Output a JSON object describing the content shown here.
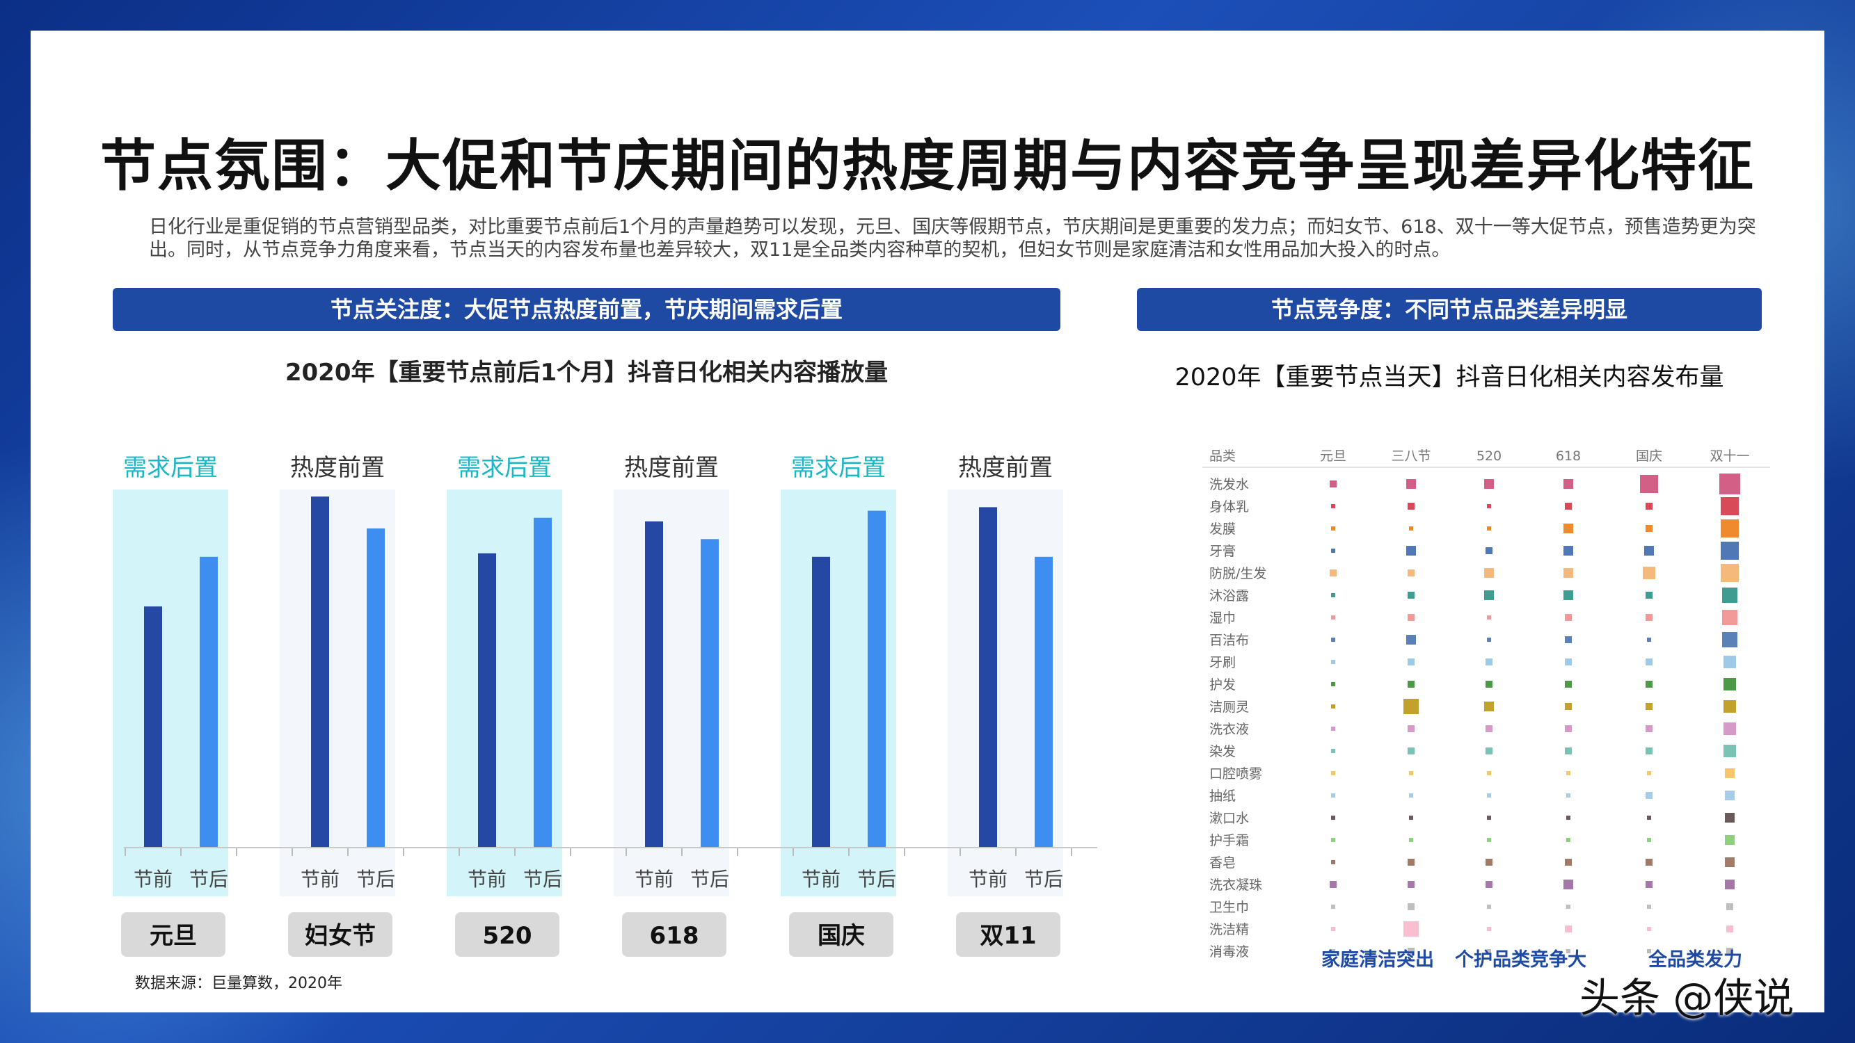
{
  "title": "节点氛围：大促和节庆期间的热度周期与内容竞争呈现差异化特征",
  "intro": "日化行业是重促销的节点营销型品类，对比重要节点前后1个月的声量趋势可以发现，元旦、国庆等假期节点，节庆期间是更重要的发力点；而妇女节、618、双十一等大促节点，预售造势更为突出。同时，从节点竞争力角度来看，节点当天的内容发布量也差异较大，双11是全品类内容种草的契机，但妇女节则是家庭清洁和女性用品加大投入的时点。",
  "left_panel": {
    "header": "节点关注度：大促节点热度前置，节庆期间需求后置"
  },
  "right_panel": {
    "header": "节点竞争度：不同节点品类差异明显",
    "notes": [
      "家庭清洁突出",
      "个护品类竞争大",
      "全品类发力"
    ]
  },
  "source": "数据来源：巨量算数，2020年",
  "watermark": "头条 @侠说",
  "colors": {
    "before": "#2548a4",
    "after": "#3d8ef0",
    "highlight_bg": "#d3f4f8",
    "plain_bg": "#f3f6fb",
    "highlight_label": "#1ab7c5",
    "plain_label": "#333333"
  },
  "chart_data": [
    {
      "type": "bar",
      "title": "2020年【重要节点前后1个月】抖音日化相关内容播放量",
      "categories": [
        "元旦",
        "妇女节",
        "520",
        "618",
        "国庆",
        "双11"
      ],
      "annotations": [
        "需求后置",
        "热度前置",
        "需求后置",
        "热度前置",
        "需求后置",
        "热度前置"
      ],
      "highlight": [
        true,
        false,
        true,
        false,
        true,
        false
      ],
      "sublabels": [
        "节前",
        "节后"
      ],
      "series": [
        {
          "name": "节前",
          "values": [
            68,
            99,
            83,
            92,
            82,
            96
          ]
        },
        {
          "name": "节后",
          "values": [
            82,
            90,
            93,
            87,
            95,
            82
          ]
        }
      ],
      "ylim": [
        0,
        100
      ],
      "grid": false
    },
    {
      "type": "heatmap",
      "title": "2020年【重要节点当天】抖音日化相关内容发布量",
      "corner_label": "品类",
      "columns": [
        "元旦",
        "三八节",
        "520",
        "618",
        "国庆",
        "双十一"
      ],
      "rows": [
        {
          "name": "洗发水",
          "values": [
            2,
            3,
            3,
            3,
            6,
            7
          ],
          "color": "#d45f86"
        },
        {
          "name": "身体乳",
          "values": [
            1,
            2,
            1,
            2,
            2,
            6
          ],
          "color": "#d94a58"
        },
        {
          "name": "发膜",
          "values": [
            1,
            1,
            1,
            3,
            2,
            6
          ],
          "color": "#ef8a2e"
        },
        {
          "name": "牙膏",
          "values": [
            1,
            3,
            2,
            3,
            3,
            6
          ],
          "color": "#4f78b5"
        },
        {
          "name": "防脱/生发",
          "values": [
            2,
            2,
            3,
            3,
            4,
            6
          ],
          "color": "#f6b97c"
        },
        {
          "name": "沐浴露",
          "values": [
            1,
            2,
            3,
            3,
            2,
            5
          ],
          "color": "#3f9c90"
        },
        {
          "name": "湿巾",
          "values": [
            1,
            2,
            1,
            2,
            2,
            5
          ],
          "color": "#f29a9a"
        },
        {
          "name": "百洁布",
          "values": [
            1,
            3,
            1,
            2,
            1,
            5
          ],
          "color": "#5a82b8"
        },
        {
          "name": "牙刷",
          "values": [
            1,
            2,
            2,
            2,
            2,
            4
          ],
          "color": "#9ec9e8"
        },
        {
          "name": "护发",
          "values": [
            1,
            2,
            2,
            2,
            2,
            4
          ],
          "color": "#4c9a48"
        },
        {
          "name": "洁厕灵",
          "values": [
            1,
            5,
            3,
            2,
            2,
            4
          ],
          "color": "#c2a12c"
        },
        {
          "name": "洗衣液",
          "values": [
            1,
            2,
            2,
            2,
            2,
            4
          ],
          "color": "#d59ac8"
        },
        {
          "name": "染发",
          "values": [
            1,
            2,
            2,
            2,
            2,
            4
          ],
          "color": "#79c2b4"
        },
        {
          "name": "口腔喷雾",
          "values": [
            1,
            1,
            1,
            1,
            1,
            3
          ],
          "color": "#f7c56a"
        },
        {
          "name": "抽纸",
          "values": [
            1,
            1,
            1,
            1,
            2,
            3
          ],
          "color": "#a5cde8"
        },
        {
          "name": "漱口水",
          "values": [
            1,
            1,
            1,
            1,
            1,
            3
          ],
          "color": "#6a5a5a"
        },
        {
          "name": "护手霜",
          "values": [
            1,
            1,
            1,
            1,
            1,
            3
          ],
          "color": "#8fd07e"
        },
        {
          "name": "香皂",
          "values": [
            1,
            2,
            2,
            2,
            2,
            3
          ],
          "color": "#a17a68"
        },
        {
          "name": "洗衣凝珠",
          "values": [
            2,
            2,
            2,
            3,
            2,
            3
          ],
          "color": "#a577a8"
        },
        {
          "name": "卫生巾",
          "values": [
            1,
            2,
            1,
            1,
            1,
            2
          ],
          "color": "#bfbfbf"
        },
        {
          "name": "洗洁精",
          "values": [
            1,
            5,
            1,
            2,
            1,
            2
          ],
          "color": "#f7bfd0"
        },
        {
          "name": "消毒液",
          "values": [
            1,
            2,
            1,
            1,
            1,
            2
          ],
          "color": "#bbbbbb"
        }
      ]
    }
  ]
}
